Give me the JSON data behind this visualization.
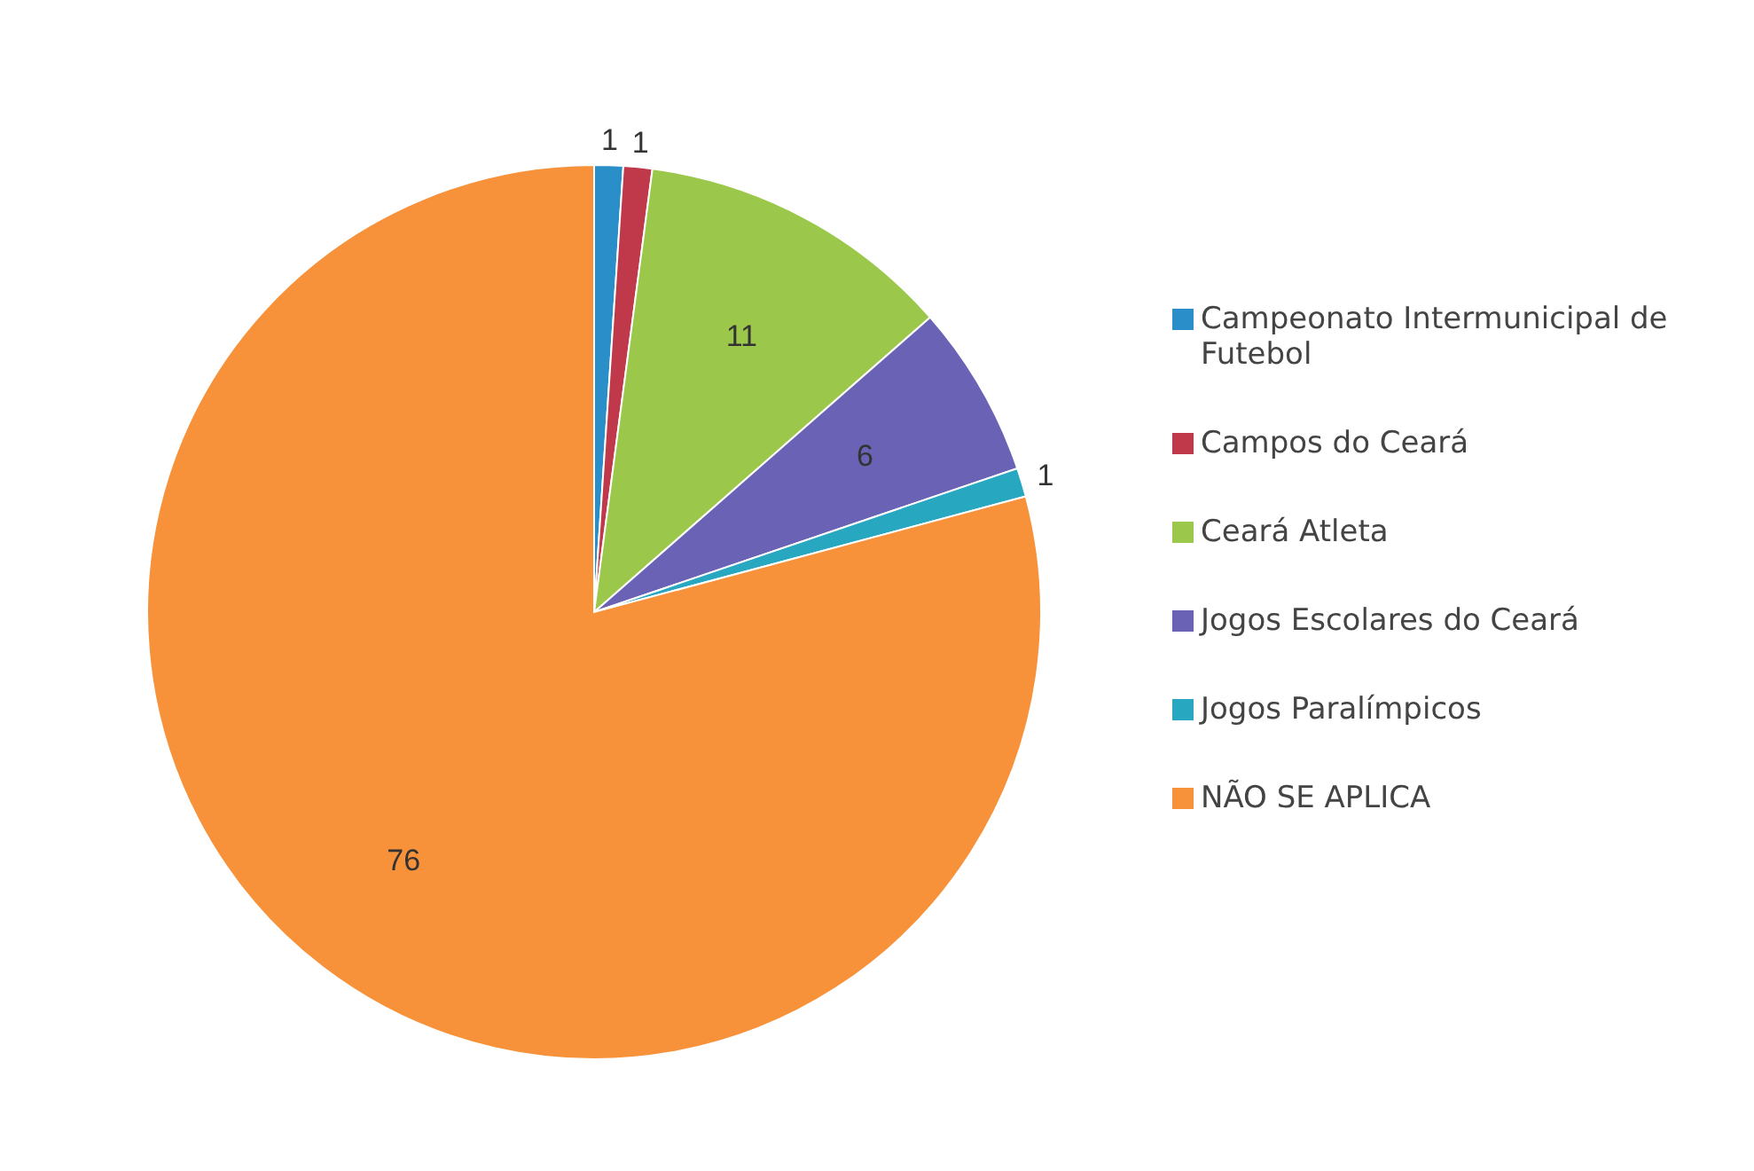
{
  "chart_data": {
    "type": "pie",
    "categories": [
      "Campeonato Intermunicipal de Futebol",
      "Campos do Ceará",
      "Ceará Atleta",
      "Jogos Escolares do Ceará",
      "Jogos Paralímpicos",
      "NÃO SE APLICA"
    ],
    "values": [
      1,
      1,
      11,
      6,
      1,
      76
    ],
    "colors": [
      "#2a8fc9",
      "#c0394a",
      "#9bc84a",
      "#6a62b5",
      "#27a8c0",
      "#f7923a"
    ],
    "data_labels": true,
    "legend": "right"
  }
}
